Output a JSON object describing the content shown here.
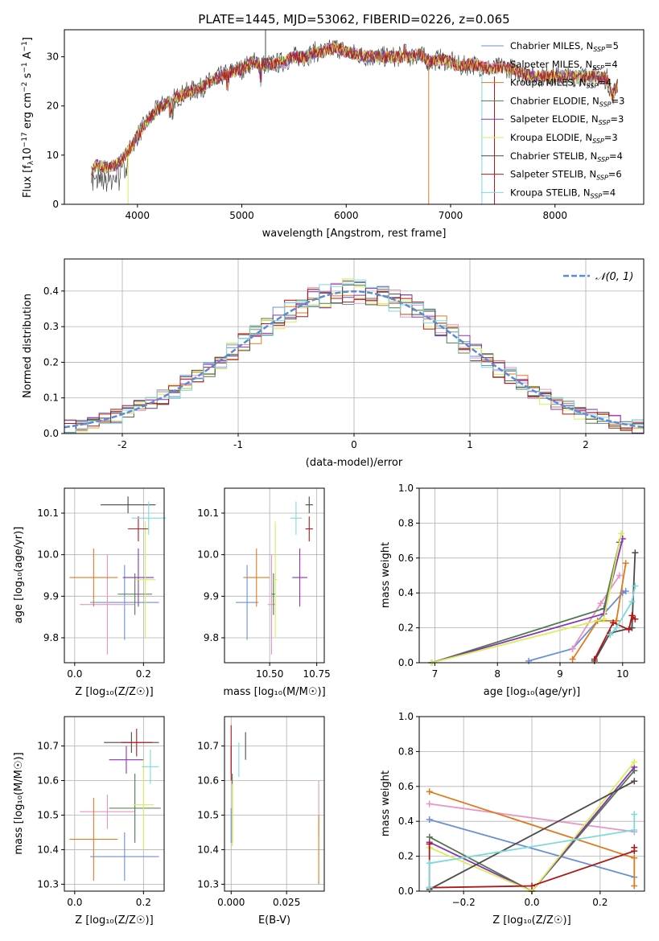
{
  "title": "PLATE=1445, MJD=53062, FIBERID=0226, z=0.065",
  "colors": {
    "Chabrier MILES": "#6b8fd6",
    "Salpeter MILES": "#e895c4",
    "Kroupa MILES": "#e07a1f",
    "Chabrier ELODIE": "#4f7a4f",
    "Salpeter ELODIE": "#8a33b5",
    "Kroupa ELODIE": "#d8ee5a",
    "Chabrier STELIB": "#4a4a4a",
    "Salpeter STELIB": "#b01818",
    "Kroupa STELIB": "#7dd9dc",
    "normal": "#5b8ad6"
  },
  "chart_data": [
    {
      "type": "line",
      "id": "spectrum",
      "xlabel": "wavelength [Angstrom, rest frame]",
      "ylabel_main": "Flux [f",
      "ylabel_sub": "λ",
      "ylabel_tail": "10",
      "ylabel_exp1": "−17",
      "ylabel_mid": " erg cm",
      "ylabel_exp2": "−2",
      "ylabel_mid2": " s",
      "ylabel_exp3": "−1",
      "ylabel_mid3": " A",
      "ylabel_exp4": "−1",
      "ylabel_end": "]",
      "xlim": [
        3300,
        8850
      ],
      "ylim": [
        0,
        35.5
      ],
      "xticks": [
        4000,
        5000,
        6000,
        7000,
        8000
      ],
      "yticks": [
        0,
        10,
        20,
        30
      ],
      "envelope": [
        [
          3560,
          6.5
        ],
        [
          3600,
          8
        ],
        [
          3700,
          7.5
        ],
        [
          3800,
          8
        ],
        [
          3900,
          10.5
        ],
        [
          3950,
          12
        ],
        [
          4000,
          14
        ],
        [
          4100,
          17
        ],
        [
          4200,
          19.5
        ],
        [
          4300,
          21
        ],
        [
          4400,
          22
        ],
        [
          4500,
          23
        ],
        [
          4600,
          23.5
        ],
        [
          4700,
          25
        ],
        [
          4800,
          26
        ],
        [
          4900,
          27
        ],
        [
          5000,
          27.5
        ],
        [
          5100,
          29
        ],
        [
          5200,
          28.5
        ],
        [
          5300,
          28.5
        ],
        [
          5400,
          29
        ],
        [
          5500,
          30
        ],
        [
          5600,
          30
        ],
        [
          5700,
          31
        ],
        [
          5800,
          31
        ],
        [
          5900,
          32
        ],
        [
          6000,
          31
        ],
        [
          6100,
          30.5
        ],
        [
          6200,
          30
        ],
        [
          6300,
          30
        ],
        [
          6400,
          30
        ],
        [
          6500,
          30
        ],
        [
          6600,
          30
        ],
        [
          6700,
          30.5
        ],
        [
          6800,
          29
        ],
        [
          6900,
          29.5
        ],
        [
          7000,
          29
        ],
        [
          7100,
          28
        ],
        [
          7200,
          28.5
        ],
        [
          7300,
          28
        ],
        [
          7400,
          27.5
        ],
        [
          7500,
          28
        ],
        [
          7600,
          27.5
        ],
        [
          7700,
          26.5
        ],
        [
          7800,
          26
        ],
        [
          7900,
          26
        ],
        [
          8000,
          26
        ],
        [
          8100,
          26
        ],
        [
          8200,
          26
        ],
        [
          8300,
          26
        ],
        [
          8400,
          26
        ],
        [
          8500,
          25.5
        ],
        [
          8550,
          22
        ],
        [
          8600,
          24.5
        ]
      ],
      "legend": [
        {
          "name": "Chabrier MILES",
          "label_pre": "Chabrier MILES, N",
          "label_post": "=5"
        },
        {
          "name": "Salpeter MILES",
          "label_pre": "Salpeter MILES, N",
          "label_post": "=4"
        },
        {
          "name": "Kroupa MILES",
          "label_pre": "Kroupa MILES, N",
          "label_post": "=4"
        },
        {
          "name": "Chabrier ELODIE",
          "label_pre": "Chabrier ELODIE, N",
          "label_post": "=3"
        },
        {
          "name": "Salpeter ELODIE",
          "label_pre": "Salpeter ELODIE, N",
          "label_post": "=3"
        },
        {
          "name": "Kroupa ELODIE",
          "label_pre": "Kroupa ELODIE, N",
          "label_post": "=3"
        },
        {
          "name": "Chabrier STELIB",
          "label_pre": "Chabrier STELIB, N",
          "label_post": "=4"
        },
        {
          "name": "Salpeter STELIB",
          "label_pre": "Salpeter STELIB, N",
          "label_post": "=6"
        },
        {
          "name": "Kroupa STELIB",
          "label_pre": "Kroupa STELIB, N",
          "label_post": "=4"
        }
      ],
      "legend_sub": "SSP",
      "legend_placement": "top-right"
    },
    {
      "type": "bar",
      "id": "residuals",
      "xlabel": "(data-model)/error",
      "ylabel": "Normed distribution",
      "xlim": [
        -2.5,
        2.5
      ],
      "ylim": [
        0,
        0.49
      ],
      "xticks": [
        -2,
        -1,
        0,
        1,
        2
      ],
      "yticks": [
        0.0,
        0.1,
        0.2,
        0.3,
        0.4
      ],
      "grid": true,
      "legend": "𝒩(0, 1)",
      "legend_placement": "top-right",
      "bin_width": 0.1,
      "bin_start": -2.5
    },
    {
      "type": "scatter",
      "id": "age-vs-Z",
      "xlabel": "Z [log₁₀(Z/Z☉)]",
      "ylabel": "age  [log₁₀(age/yr)]",
      "xlim": [
        -0.03,
        0.26
      ],
      "ylim": [
        9.74,
        10.16
      ],
      "xticks": [
        0.0,
        0.2
      ],
      "xticklabels": [
        "0.0",
        "0.2"
      ],
      "yticks": [
        9.8,
        9.9,
        10.0,
        10.1
      ],
      "points": [
        {
          "name": "Chabrier MILES",
          "x": 0.145,
          "y": 9.885,
          "xerr": 0.1,
          "yerr": 0.09
        },
        {
          "name": "Salpeter MILES",
          "x": 0.095,
          "y": 9.88,
          "xerr": 0.08,
          "yerr": 0.12
        },
        {
          "name": "Kroupa MILES",
          "x": 0.055,
          "y": 9.945,
          "xerr": 0.07,
          "yerr": 0.07
        },
        {
          "name": "Chabrier ELODIE",
          "x": 0.175,
          "y": 9.905,
          "xerr": 0.05,
          "yerr": 0.05
        },
        {
          "name": "Salpeter ELODIE",
          "x": 0.185,
          "y": 9.945,
          "xerr": 0.045,
          "yerr": 0.07
        },
        {
          "name": "Kroupa ELODIE",
          "x": 0.205,
          "y": 9.94,
          "xerr": 0.03,
          "yerr": 0.14
        },
        {
          "name": "Chabrier STELIB",
          "x": 0.155,
          "y": 10.12,
          "xerr": 0.08,
          "yerr": 0.02
        },
        {
          "name": "Salpeter STELIB",
          "x": 0.185,
          "y": 10.062,
          "xerr": 0.03,
          "yerr": 0.03
        },
        {
          "name": "Kroupa STELIB",
          "x": 0.215,
          "y": 10.088,
          "xerr": 0.05,
          "yerr": 0.04
        }
      ]
    },
    {
      "type": "scatter",
      "id": "age-vs-mass",
      "xlabel": "mass [log₁₀(M/M☉)]",
      "xlim": [
        10.26,
        10.79
      ],
      "ylim": [
        9.74,
        10.16
      ],
      "xticks": [
        10.5,
        10.75
      ],
      "xticklabels": [
        "10.50",
        "10.75"
      ],
      "yticks": [
        9.8,
        9.9,
        10.0,
        10.1
      ],
      "points": [
        {
          "name": "Chabrier MILES",
          "x": 10.38,
          "y": 9.885,
          "xerr": 0.06,
          "yerr": 0.09
        },
        {
          "name": "Salpeter MILES",
          "x": 10.51,
          "y": 9.88,
          "xerr": 0.02,
          "yerr": 0.12
        },
        {
          "name": "Kroupa MILES",
          "x": 10.43,
          "y": 9.945,
          "xerr": 0.07,
          "yerr": 0.07
        },
        {
          "name": "Chabrier ELODIE",
          "x": 10.52,
          "y": 9.905,
          "xerr": 0.01,
          "yerr": 0.05
        },
        {
          "name": "Salpeter ELODIE",
          "x": 10.66,
          "y": 9.945,
          "xerr": 0.04,
          "yerr": 0.07
        },
        {
          "name": "Kroupa ELODIE",
          "x": 10.53,
          "y": 9.94,
          "xerr": 0.01,
          "yerr": 0.14
        },
        {
          "name": "Chabrier STELIB",
          "x": 10.71,
          "y": 10.12,
          "xerr": 0.02,
          "yerr": 0.02
        },
        {
          "name": "Salpeter STELIB",
          "x": 10.71,
          "y": 10.062,
          "xerr": 0.02,
          "yerr": 0.03
        },
        {
          "name": "Kroupa STELIB",
          "x": 10.64,
          "y": 10.088,
          "xerr": 0.03,
          "yerr": 0.04
        }
      ]
    },
    {
      "type": "line",
      "id": "weight-vs-age",
      "xlabel": "age  [log₁₀(age/yr)]",
      "ylabel": "mass weight",
      "xlim": [
        6.75,
        10.35
      ],
      "ylim": [
        0,
        1.0
      ],
      "xticks": [
        7,
        8,
        9,
        10
      ],
      "yticks": [
        0.0,
        0.2,
        0.4,
        0.6,
        0.8,
        1.0
      ],
      "yticklabels": [
        "0.0",
        "0.2",
        "0.4",
        "0.6",
        "0.8",
        "1.0"
      ],
      "grid": true,
      "series": [
        {
          "name": "Chabrier MILES",
          "x": [
            8.5,
            9.2,
            10.0,
            10.05
          ],
          "y": [
            0.01,
            0.08,
            0.4,
            0.41
          ]
        },
        {
          "name": "Salpeter MILES",
          "x": [
            9.2,
            9.65,
            9.95
          ],
          "y": [
            0.08,
            0.34,
            0.5
          ]
        },
        {
          "name": "Kroupa MILES",
          "x": [
            9.2,
            9.6,
            9.9,
            10.05
          ],
          "y": [
            0.02,
            0.24,
            0.24,
            0.57
          ]
        },
        {
          "name": "Chabrier ELODIE",
          "x": [
            6.95,
            9.7,
            9.95
          ],
          "y": [
            0.0,
            0.31,
            0.69
          ]
        },
        {
          "name": "Salpeter ELODIE",
          "x": [
            6.95,
            9.7,
            10.0
          ],
          "y": [
            0.0,
            0.28,
            0.71
          ]
        },
        {
          "name": "Kroupa ELODIE",
          "x": [
            6.95,
            9.7,
            9.98
          ],
          "y": [
            0.0,
            0.25,
            0.74
          ]
        },
        {
          "name": "Chabrier STELIB",
          "x": [
            9.55,
            9.8,
            10.15,
            10.2
          ],
          "y": [
            0.01,
            0.17,
            0.2,
            0.63
          ]
        },
        {
          "name": "Salpeter STELIB",
          "x": [
            9.55,
            9.85,
            10.1,
            10.15,
            10.2
          ],
          "y": [
            0.02,
            0.23,
            0.19,
            0.27,
            0.25
          ]
        },
        {
          "name": "Kroupa STELIB",
          "x": [
            9.8,
            9.9,
            10.15,
            10.2
          ],
          "y": [
            0.16,
            0.2,
            0.35,
            0.44
          ]
        }
      ]
    },
    {
      "type": "scatter",
      "id": "mass-vs-Z",
      "xlabel": "Z [log₁₀(Z/Z☉)]",
      "ylabel": "mass [log₁₀(M/M☉)]",
      "xlim": [
        -0.03,
        0.26
      ],
      "ylim": [
        10.28,
        10.785
      ],
      "xticks": [
        0.0,
        0.2
      ],
      "xticklabels": [
        "0.0",
        "0.2"
      ],
      "yticks": [
        10.3,
        10.4,
        10.5,
        10.6,
        10.7
      ],
      "points": [
        {
          "name": "Chabrier MILES",
          "x": 0.145,
          "y": 10.38,
          "xerr": 0.1,
          "yerr": 0.07
        },
        {
          "name": "Salpeter MILES",
          "x": 0.095,
          "y": 10.51,
          "xerr": 0.08,
          "yerr": 0.05
        },
        {
          "name": "Kroupa MILES",
          "x": 0.055,
          "y": 10.43,
          "xerr": 0.07,
          "yerr": 0.12
        },
        {
          "name": "Chabrier ELODIE",
          "x": 0.175,
          "y": 10.52,
          "xerr": 0.075,
          "yerr": 0.1
        },
        {
          "name": "Salpeter ELODIE",
          "x": 0.15,
          "y": 10.66,
          "xerr": 0.05,
          "yerr": 0.04
        },
        {
          "name": "Kroupa ELODIE",
          "x": 0.2,
          "y": 10.53,
          "xerr": 0.03,
          "yerr": 0.13
        },
        {
          "name": "Chabrier STELIB",
          "x": 0.165,
          "y": 10.71,
          "xerr": 0.08,
          "yerr": 0.03
        },
        {
          "name": "Salpeter STELIB",
          "x": 0.18,
          "y": 10.71,
          "xerr": 0.045,
          "yerr": 0.04
        },
        {
          "name": "Kroupa STELIB",
          "x": 0.22,
          "y": 10.64,
          "xerr": 0.025,
          "yerr": 0.05
        }
      ]
    },
    {
      "type": "scatter",
      "id": "mass-vs-ebv",
      "xlabel": "E(B-V)",
      "xlim": [
        -0.003,
        0.042
      ],
      "ylim": [
        10.28,
        10.785
      ],
      "xticks": [
        0.0,
        0.025
      ],
      "xticklabels": [
        "0.000",
        "0.025"
      ],
      "yticks": [
        10.3,
        10.4,
        10.5,
        10.6,
        10.7
      ],
      "points": [
        {
          "name": "Chabrier MILES",
          "x": 0.0,
          "y": 10.47,
          "xerr": 0,
          "yerr": 0.05
        },
        {
          "name": "Salpeter MILES",
          "x": 0.0395,
          "y": 10.52,
          "xerr": 0,
          "yerr": 0.08
        },
        {
          "name": "Kroupa MILES",
          "x": 0.0395,
          "y": 10.4,
          "xerr": 0,
          "yerr": 0.1
        },
        {
          "name": "Chabrier ELODIE",
          "x": 0.0005,
          "y": 10.52,
          "xerr": 0,
          "yerr": 0.1
        },
        {
          "name": "Salpeter ELODIE",
          "x": 0.0,
          "y": 10.66,
          "xerr": 0,
          "yerr": 0.04
        },
        {
          "name": "Kroupa ELODIE",
          "x": 0.0005,
          "y": 10.5,
          "xerr": 0,
          "yerr": 0.09
        },
        {
          "name": "Chabrier STELIB",
          "x": 0.0065,
          "y": 10.7,
          "xerr": 0,
          "yerr": 0.04
        },
        {
          "name": "Salpeter STELIB",
          "x": 0.0,
          "y": 10.68,
          "xerr": 0,
          "yerr": 0.08
        },
        {
          "name": "Kroupa STELIB",
          "x": 0.0035,
          "y": 10.66,
          "xerr": 0,
          "yerr": 0.05
        }
      ]
    },
    {
      "type": "line",
      "id": "weight-vs-Z",
      "xlabel": "Z [log₁₀(Z/Z☉)]",
      "ylabel": "mass weight",
      "xlim": [
        -0.33,
        0.33
      ],
      "ylim": [
        0,
        1.0
      ],
      "xticks": [
        -0.2,
        0.0,
        0.2
      ],
      "xticklabels": [
        "−0.2",
        "0.0",
        "0.2"
      ],
      "yticks": [
        0.0,
        0.2,
        0.4,
        0.6,
        0.8,
        1.0
      ],
      "yticklabels": [
        "0.0",
        "0.2",
        "0.4",
        "0.6",
        "0.8",
        "1.0"
      ],
      "grid": true,
      "series": [
        {
          "name": "Chabrier MILES",
          "x": [
            -0.3,
            0.3
          ],
          "y": [
            0.41,
            0.08
          ]
        },
        {
          "name": "Salpeter MILES",
          "x": [
            -0.3,
            0.3
          ],
          "y": [
            0.5,
            0.34
          ]
        },
        {
          "name": "Kroupa MILES",
          "x": [
            -0.3,
            0.3,
            0.3
          ],
          "y": [
            0.57,
            0.19,
            0.03
          ]
        },
        {
          "name": "Chabrier ELODIE",
          "x": [
            -0.3,
            0.0,
            0.3
          ],
          "y": [
            0.31,
            0.0,
            0.69
          ]
        },
        {
          "name": "Salpeter ELODIE",
          "x": [
            -0.3,
            0.0,
            0.3
          ],
          "y": [
            0.28,
            0.0,
            0.71
          ]
        },
        {
          "name": "Kroupa ELODIE",
          "x": [
            -0.3,
            0.0,
            0.3
          ],
          "y": [
            0.25,
            0.0,
            0.74
          ]
        },
        {
          "name": "Chabrier STELIB",
          "x": [
            -0.3,
            0.3
          ],
          "y": [
            0.01,
            0.63
          ]
        },
        {
          "name": "Salpeter STELIB",
          "x": [
            -0.3,
            -0.3,
            0.0,
            0.3,
            0.3
          ],
          "y": [
            0.27,
            0.02,
            0.03,
            0.23,
            0.25
          ]
        },
        {
          "name": "Kroupa STELIB",
          "x": [
            -0.3,
            -0.3,
            0.3,
            0.3
          ],
          "y": [
            0.02,
            0.16,
            0.35,
            0.44
          ]
        }
      ]
    }
  ]
}
